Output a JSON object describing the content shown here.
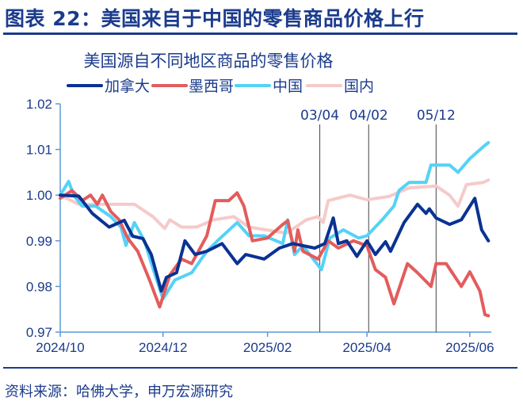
{
  "header": {
    "title": "图表 22：美国来自于中国的零售商品价格上行"
  },
  "footer": {
    "source": "资料来源：哈佛大学，申万宏源研究"
  },
  "chart_data": {
    "type": "line",
    "title": "美国源自不同地区商品的零售价格",
    "xlabel": "",
    "ylabel": "",
    "ylim": [
      0.97,
      1.02
    ],
    "yticks": [
      "1.02",
      "1.01",
      "1.00",
      "0.99",
      "0.98",
      "0.97"
    ],
    "xlim": [
      "2024-10-01",
      "2025-06-12"
    ],
    "xticks": [
      {
        "date": "2024-10-01",
        "label": "2024/10"
      },
      {
        "date": "2024-12-01",
        "label": "2024/12"
      },
      {
        "date": "2025-02-01",
        "label": "2025/02"
      },
      {
        "date": "2025-04-01",
        "label": "2025/04"
      },
      {
        "date": "2025-06-01",
        "label": "2025/06"
      }
    ],
    "grid": false,
    "legend": "top",
    "events": [
      {
        "date": "2025-03-04",
        "label": "03/04"
      },
      {
        "date": "2025-04-02",
        "label": "04/02"
      },
      {
        "date": "2025-05-12",
        "label": "05/12"
      }
    ],
    "series": [
      {
        "name": "加拿大",
        "color": "#0a3293",
        "points": [
          [
            "2024-10-01",
            1.0
          ],
          [
            "2024-10-12",
            0.9998
          ],
          [
            "2024-10-20",
            0.996
          ],
          [
            "2024-10-30",
            0.993
          ],
          [
            "2024-11-08",
            0.9945
          ],
          [
            "2024-11-13",
            0.991
          ],
          [
            "2024-11-19",
            0.9905
          ],
          [
            "2024-11-24",
            0.987
          ],
          [
            "2024-11-30",
            0.979
          ],
          [
            "2024-12-03",
            0.982
          ],
          [
            "2024-12-09",
            0.983
          ],
          [
            "2024-12-14",
            0.99
          ],
          [
            "2024-12-20",
            0.987
          ],
          [
            "2024-12-27",
            0.9877
          ],
          [
            "2025-01-05",
            0.9894
          ],
          [
            "2025-01-14",
            0.985
          ],
          [
            "2025-01-19",
            0.987
          ],
          [
            "2025-01-30",
            0.986
          ],
          [
            "2025-02-08",
            0.9884
          ],
          [
            "2025-02-16",
            0.9894
          ],
          [
            "2025-03-01",
            0.9884
          ],
          [
            "2025-03-07",
            0.9894
          ],
          [
            "2025-03-12",
            0.995
          ],
          [
            "2025-03-15",
            0.9894
          ],
          [
            "2025-03-20",
            0.99
          ],
          [
            "2025-03-26",
            0.9866
          ],
          [
            "2025-04-01",
            0.99
          ],
          [
            "2025-04-06",
            0.987
          ],
          [
            "2025-04-12",
            0.9898
          ],
          [
            "2025-04-15",
            0.9877
          ],
          [
            "2025-04-23",
            0.994
          ],
          [
            "2025-05-01",
            0.998
          ],
          [
            "2025-05-06",
            0.996
          ],
          [
            "2025-05-08",
            0.997
          ],
          [
            "2025-05-12",
            0.995
          ],
          [
            "2025-05-20",
            0.9936
          ],
          [
            "2025-05-27",
            0.9946
          ],
          [
            "2025-06-04",
            0.9993
          ],
          [
            "2025-06-08",
            0.9924
          ],
          [
            "2025-06-12",
            0.99
          ]
        ]
      },
      {
        "name": "墨西哥",
        "color": "#e35c5c",
        "points": [
          [
            "2024-10-01",
            0.9993
          ],
          [
            "2024-10-08",
            1.001
          ],
          [
            "2024-10-14",
            0.9988
          ],
          [
            "2024-10-19",
            1.0
          ],
          [
            "2024-10-23",
            0.998
          ],
          [
            "2024-10-26",
            1.0
          ],
          [
            "2024-10-31",
            0.9964
          ],
          [
            "2024-11-05",
            0.9946
          ],
          [
            "2024-11-10",
            0.9906
          ],
          [
            "2024-11-16",
            0.9877
          ],
          [
            "2024-11-23",
            0.9814
          ],
          [
            "2024-11-29",
            0.9755
          ],
          [
            "2024-12-05",
            0.9825
          ],
          [
            "2024-12-12",
            0.986
          ],
          [
            "2024-12-18",
            0.985
          ],
          [
            "2024-12-27",
            0.9911
          ],
          [
            "2025-01-01",
            0.9988
          ],
          [
            "2025-01-09",
            0.9988
          ],
          [
            "2025-01-14",
            1.0005
          ],
          [
            "2025-01-18",
            0.9976
          ],
          [
            "2025-01-23",
            0.99
          ],
          [
            "2025-02-01",
            0.9906
          ],
          [
            "2025-02-10",
            0.9936
          ],
          [
            "2025-02-13",
            0.9944
          ],
          [
            "2025-02-17",
            0.9877
          ],
          [
            "2025-02-19",
            0.9924
          ],
          [
            "2025-02-22",
            0.9877
          ],
          [
            "2025-03-03",
            0.986
          ],
          [
            "2025-03-09",
            0.99
          ],
          [
            "2025-03-15",
            0.9884
          ],
          [
            "2025-03-24",
            0.99
          ],
          [
            "2025-04-01",
            0.9889
          ],
          [
            "2025-04-06",
            0.9837
          ],
          [
            "2025-04-12",
            0.982
          ],
          [
            "2025-04-17",
            0.9762
          ],
          [
            "2025-04-25",
            0.985
          ],
          [
            "2025-05-01",
            0.983
          ],
          [
            "2025-05-09",
            0.98
          ],
          [
            "2025-05-12",
            0.985
          ],
          [
            "2025-05-18",
            0.985
          ],
          [
            "2025-05-27",
            0.98
          ],
          [
            "2025-06-01",
            0.9832
          ],
          [
            "2025-06-07",
            0.979
          ],
          [
            "2025-06-10",
            0.9738
          ],
          [
            "2025-06-12",
            0.9736
          ]
        ]
      },
      {
        "name": "中国",
        "color": "#55d2f7",
        "points": [
          [
            "2024-10-01",
            1.0
          ],
          [
            "2024-10-06",
            1.003
          ],
          [
            "2024-10-09",
            1.0
          ],
          [
            "2024-10-14",
            0.9976
          ],
          [
            "2024-10-22",
            0.9976
          ],
          [
            "2024-10-31",
            0.9953
          ],
          [
            "2024-11-06",
            0.993
          ],
          [
            "2024-11-09",
            0.989
          ],
          [
            "2024-11-14",
            0.994
          ],
          [
            "2024-11-20",
            0.99
          ],
          [
            "2024-11-25",
            0.984
          ],
          [
            "2024-12-01",
            0.9773
          ],
          [
            "2024-12-08",
            0.9814
          ],
          [
            "2024-12-18",
            0.983
          ],
          [
            "2024-12-27",
            0.9877
          ],
          [
            "2025-01-04",
            0.9906
          ],
          [
            "2025-01-14",
            0.994
          ],
          [
            "2025-01-21",
            0.9911
          ],
          [
            "2025-01-30",
            0.9911
          ],
          [
            "2025-02-10",
            0.9894
          ],
          [
            "2025-02-13",
            0.9946
          ],
          [
            "2025-02-17",
            0.987
          ],
          [
            "2025-02-22",
            0.9889
          ],
          [
            "2025-03-05",
            0.9837
          ],
          [
            "2025-03-10",
            0.9906
          ],
          [
            "2025-03-18",
            0.9924
          ],
          [
            "2025-03-27",
            0.9906
          ],
          [
            "2025-04-01",
            0.9911
          ],
          [
            "2025-04-10",
            0.9946
          ],
          [
            "2025-04-17",
            0.9976
          ],
          [
            "2025-04-20",
            1.001
          ],
          [
            "2025-04-26",
            1.0028
          ],
          [
            "2025-05-06",
            1.0028
          ],
          [
            "2025-05-09",
            1.0066
          ],
          [
            "2025-05-20",
            1.0066
          ],
          [
            "2025-05-25",
            1.005
          ],
          [
            "2025-06-01",
            1.008
          ],
          [
            "2025-06-09",
            1.0106
          ],
          [
            "2025-06-12",
            1.0115
          ]
        ]
      },
      {
        "name": "国内",
        "color": "#f6caca",
        "points": [
          [
            "2024-10-01",
            1.0
          ],
          [
            "2024-10-12",
            0.998
          ],
          [
            "2024-11-01",
            0.998
          ],
          [
            "2024-11-14",
            0.998
          ],
          [
            "2024-11-25",
            0.9953
          ],
          [
            "2024-12-02",
            0.9927
          ],
          [
            "2024-12-05",
            0.9946
          ],
          [
            "2024-12-12",
            0.993
          ],
          [
            "2024-12-21",
            0.993
          ],
          [
            "2024-12-31",
            0.9946
          ],
          [
            "2025-01-12",
            0.9953
          ],
          [
            "2025-01-21",
            0.993
          ],
          [
            "2025-02-10",
            0.9918
          ],
          [
            "2025-02-13",
            0.9918
          ],
          [
            "2025-02-24",
            0.9946
          ],
          [
            "2025-03-03",
            0.9953
          ],
          [
            "2025-03-06",
            0.994
          ],
          [
            "2025-03-09",
            0.9988
          ],
          [
            "2025-03-22",
            1.0
          ],
          [
            "2025-04-01",
            0.999
          ],
          [
            "2025-04-14",
            0.9997
          ],
          [
            "2025-04-26",
            1.0016
          ],
          [
            "2025-05-12",
            1.002
          ],
          [
            "2025-05-20",
            1.0
          ],
          [
            "2025-05-25",
            0.9976
          ],
          [
            "2025-05-30",
            1.0023
          ],
          [
            "2025-06-09",
            1.0028
          ],
          [
            "2025-06-12",
            1.0033
          ]
        ]
      }
    ]
  }
}
